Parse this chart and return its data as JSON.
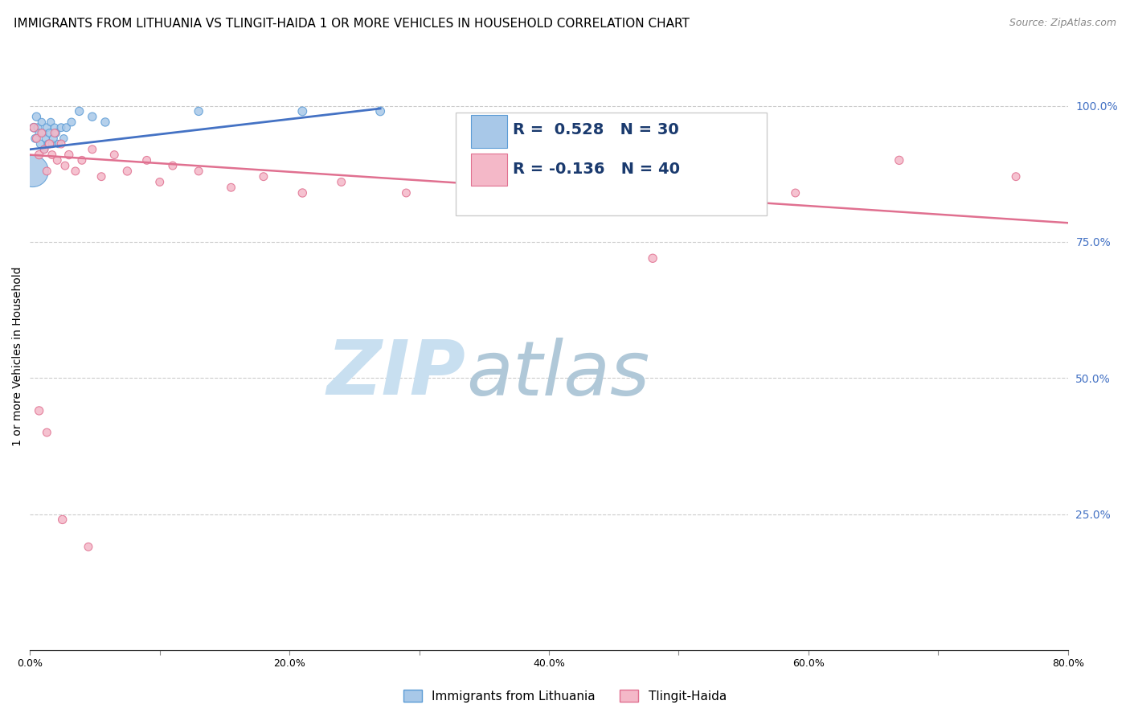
{
  "title": "IMMIGRANTS FROM LITHUANIA VS TLINGIT-HAIDA 1 OR MORE VEHICLES IN HOUSEHOLD CORRELATION CHART",
  "source": "Source: ZipAtlas.com",
  "ylabel": "1 or more Vehicles in Household",
  "xlim": [
    0.0,
    0.8
  ],
  "ylim": [
    0.0,
    1.08
  ],
  "xtick_vals": [
    0.0,
    0.1,
    0.2,
    0.3,
    0.4,
    0.5,
    0.6,
    0.7,
    0.8
  ],
  "xtick_labels": [
    "0.0%",
    "",
    "20.0%",
    "",
    "40.0%",
    "",
    "60.0%",
    "",
    "80.0%"
  ],
  "ytick_vals_right": [
    1.0,
    0.75,
    0.5,
    0.25
  ],
  "ytick_labels_right": [
    "100.0%",
    "75.0%",
    "50.0%",
    "25.0%"
  ],
  "blue_scatter_x": [
    0.003,
    0.004,
    0.005,
    0.006,
    0.007,
    0.008,
    0.009,
    0.01,
    0.011,
    0.012,
    0.013,
    0.014,
    0.015,
    0.016,
    0.017,
    0.018,
    0.019,
    0.02,
    0.022,
    0.024,
    0.026,
    0.028,
    0.032,
    0.038,
    0.048,
    0.058,
    0.13,
    0.21,
    0.27,
    0.002
  ],
  "blue_scatter_y": [
    0.96,
    0.94,
    0.98,
    0.96,
    0.95,
    0.93,
    0.97,
    0.95,
    0.92,
    0.94,
    0.96,
    0.93,
    0.95,
    0.97,
    0.93,
    0.94,
    0.96,
    0.95,
    0.93,
    0.96,
    0.94,
    0.96,
    0.97,
    0.99,
    0.98,
    0.97,
    0.99,
    0.99,
    0.99,
    0.88
  ],
  "blue_scatter_sizes": [
    60,
    50,
    55,
    50,
    45,
    50,
    45,
    50,
    45,
    45,
    50,
    45,
    50,
    45,
    45,
    50,
    45,
    50,
    45,
    50,
    45,
    50,
    50,
    55,
    55,
    55,
    55,
    60,
    60,
    800
  ],
  "pink_scatter_x": [
    0.003,
    0.005,
    0.007,
    0.009,
    0.011,
    0.013,
    0.015,
    0.017,
    0.019,
    0.021,
    0.024,
    0.027,
    0.03,
    0.035,
    0.04,
    0.048,
    0.055,
    0.065,
    0.075,
    0.09,
    0.1,
    0.11,
    0.13,
    0.155,
    0.18,
    0.21,
    0.24,
    0.29,
    0.34,
    0.39,
    0.5,
    0.59,
    0.67,
    0.76,
    0.007,
    0.013,
    0.35,
    0.48,
    0.025,
    0.045
  ],
  "pink_scatter_y": [
    0.96,
    0.94,
    0.91,
    0.95,
    0.92,
    0.88,
    0.93,
    0.91,
    0.95,
    0.9,
    0.93,
    0.89,
    0.91,
    0.88,
    0.9,
    0.92,
    0.87,
    0.91,
    0.88,
    0.9,
    0.86,
    0.89,
    0.88,
    0.85,
    0.87,
    0.84,
    0.86,
    0.84,
    0.86,
    0.84,
    0.86,
    0.84,
    0.9,
    0.87,
    0.44,
    0.4,
    0.83,
    0.72,
    0.24,
    0.19
  ],
  "pink_scatter_sizes": [
    55,
    50,
    55,
    50,
    50,
    50,
    55,
    50,
    50,
    50,
    50,
    50,
    55,
    50,
    50,
    50,
    50,
    50,
    55,
    50,
    50,
    50,
    50,
    50,
    50,
    55,
    50,
    50,
    50,
    50,
    50,
    50,
    55,
    50,
    55,
    50,
    55,
    55,
    55,
    50
  ],
  "blue_line_x": [
    0.0,
    0.27
  ],
  "blue_line_y": [
    0.92,
    0.995
  ],
  "pink_line_x": [
    0.0,
    0.8
  ],
  "pink_line_y": [
    0.91,
    0.785
  ],
  "blue_color": "#a8c8e8",
  "blue_edge": "#5b9bd5",
  "pink_color": "#f4b8c8",
  "pink_edge": "#e07090",
  "blue_line_color": "#4472c4",
  "pink_line_color": "#e07090",
  "watermark_zip": "ZIP",
  "watermark_atlas": "atlas",
  "watermark_zip_color": "#c8dff0",
  "watermark_atlas_color": "#b0c8d8",
  "grid_color": "#cccccc",
  "right_axis_color": "#4472c4",
  "background_color": "#ffffff",
  "title_fontsize": 11,
  "source_fontsize": 9,
  "axis_label_fontsize": 10,
  "bottom_legend_labels": [
    "Immigrants from Lithuania",
    "Tlingit-Haida"
  ],
  "legend_R1": "R =  0.528",
  "legend_N1": "N = 30",
  "legend_R2": "R = -0.136",
  "legend_N2": "N = 40"
}
